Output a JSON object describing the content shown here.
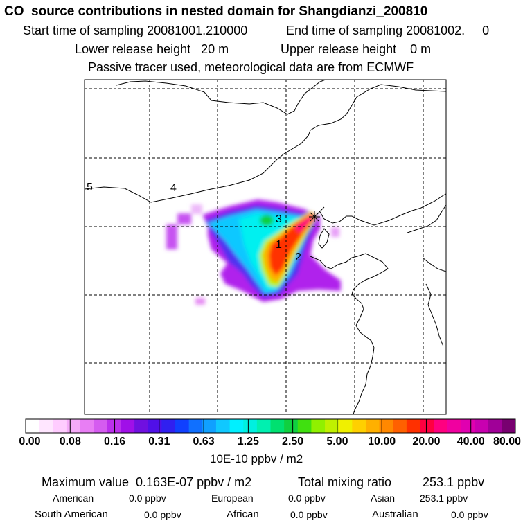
{
  "header": {
    "title": "CO  source contributions in nested domain for Shangdianzi_200810",
    "start_label": "Start time of sampling 20081001.210000",
    "end_label": "End time of sampling 20081002.     0",
    "lower_release": "Lower release height   20 m",
    "upper_release": "Upper release height    0 m",
    "tracer_note": "Passive tracer used, meteorological data are from ECMWF"
  },
  "map": {
    "region_labels": [
      "1",
      "2",
      "3",
      "4",
      "5"
    ],
    "station_marker": "*"
  },
  "colorbar": {
    "tick_labels": [
      "0.00",
      "0.08",
      "0.16",
      "0.31",
      "0.63",
      "1.25",
      "2.50",
      "5.00",
      "10.00",
      "20.00",
      "40.00",
      "80.00"
    ],
    "unit": "10E-10 ppbv / m2",
    "colors": [
      "#ffffff",
      "#ffe6ff",
      "#ffccff",
      "#f5aaf8",
      "#e87ef4",
      "#d55cf0",
      "#bb30ec",
      "#a010e8",
      "#7010e0",
      "#5010e8",
      "#3020f0",
      "#1040ff",
      "#1070ff",
      "#10a0ff",
      "#10c8ff",
      "#00f0ff",
      "#00f0e0",
      "#00f0b0",
      "#00e070",
      "#10d040",
      "#40e010",
      "#90f000",
      "#c0f000",
      "#f0f000",
      "#ffd000",
      "#ffb000",
      "#ff8800",
      "#ff6000",
      "#ff3000",
      "#ff0040",
      "#ff0080",
      "#f000a0",
      "#e000b0",
      "#c800b0",
      "#a00098",
      "#780070"
    ]
  },
  "footer": {
    "max_label": "Maximum value  0.163E-07 ppbv / m2",
    "total_label": "Total mixing ratio",
    "total_value": "253.1 ppbv",
    "regions": [
      {
        "name": "American",
        "value": "0.0 ppbv"
      },
      {
        "name": "European",
        "value": "0.0 ppbv"
      },
      {
        "name": "Asian",
        "value": "253.1 ppbv"
      },
      {
        "name": "South American",
        "value": "0.0 ppbv"
      },
      {
        "name": "African",
        "value": "0.0 ppbv"
      },
      {
        "name": "Australian",
        "value": "0.0 ppbv"
      }
    ]
  }
}
